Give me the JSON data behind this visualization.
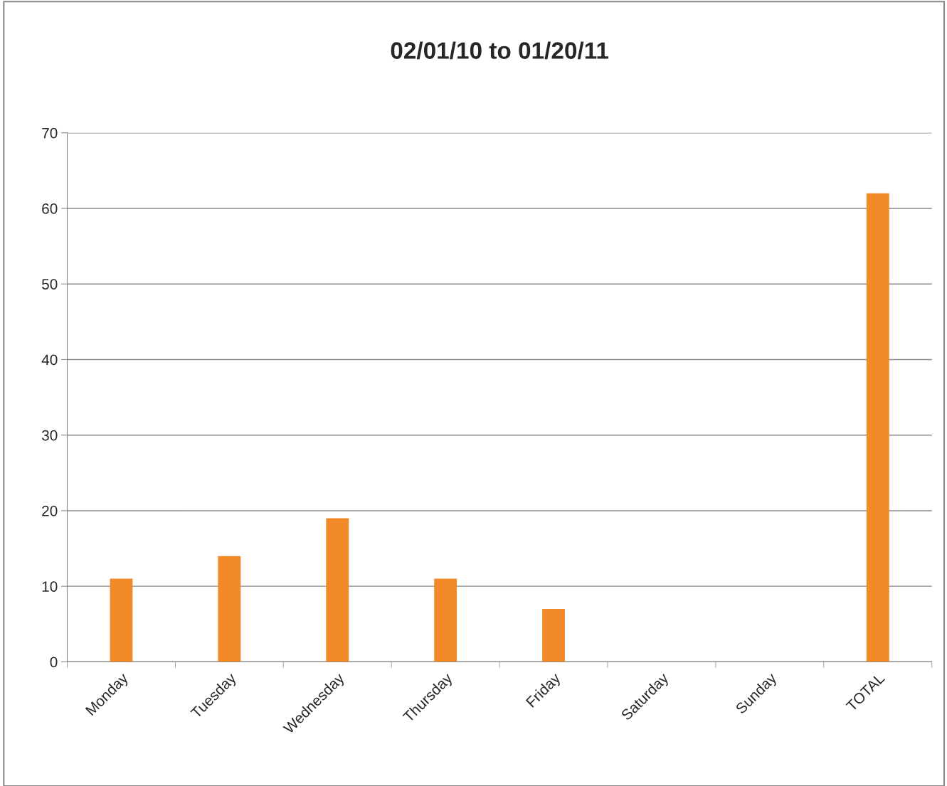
{
  "chart_data": {
    "type": "bar",
    "title": "02/01/10 to 01/20/11",
    "categories": [
      "Monday",
      "Tuesday",
      "Wednesday",
      "Thursday",
      "Friday",
      "Saturday",
      "Sunday",
      "TOTAL"
    ],
    "values": [
      11,
      14,
      19,
      11,
      7,
      0,
      0,
      62
    ],
    "color": "#f28a2a",
    "ylim": [
      0,
      70
    ],
    "yticks": [
      0,
      10,
      20,
      30,
      40,
      50,
      60,
      70
    ],
    "grid": "y",
    "legend": false
  }
}
